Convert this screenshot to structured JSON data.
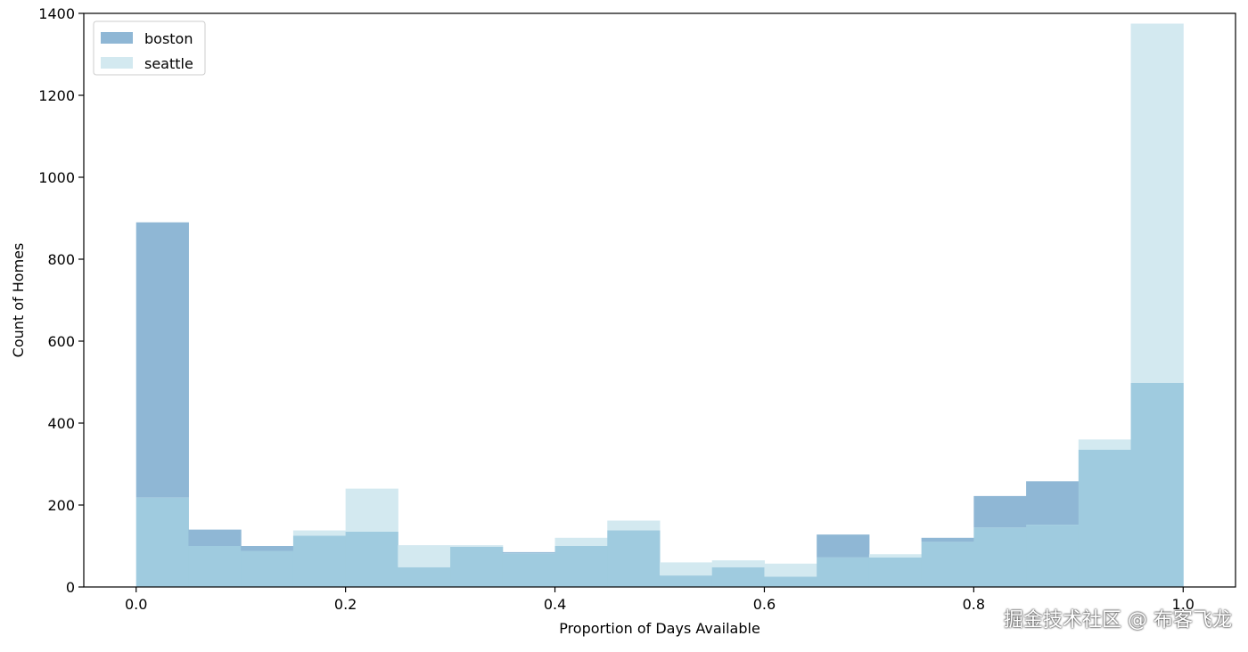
{
  "chart_data": {
    "type": "bar",
    "title": "",
    "xlabel": "Proportion of Days Available",
    "ylabel": "Count of Homes",
    "xlim": [
      -0.05,
      1.05
    ],
    "ylim": [
      0,
      1400
    ],
    "grid": false,
    "legend_position": "top-left",
    "xticks": [
      "0.0",
      "0.2",
      "0.4",
      "0.6",
      "0.8",
      "1.0"
    ],
    "yticks": [
      "0",
      "200",
      "400",
      "600",
      "800",
      "1000",
      "1200",
      "1400"
    ],
    "bin_edges": [
      0.0,
      0.05,
      0.1,
      0.15,
      0.2,
      0.25,
      0.3,
      0.35,
      0.4,
      0.45,
      0.5,
      0.55,
      0.6,
      0.65,
      0.7,
      0.75,
      0.8,
      0.85,
      0.9,
      0.95,
      1.0
    ],
    "series": [
      {
        "name": "boston",
        "color": "#8fb7d5",
        "values": [
          890,
          140,
          100,
          125,
          135,
          48,
          98,
          85,
          100,
          138,
          28,
          48,
          25,
          128,
          72,
          120,
          222,
          258,
          335,
          498
        ]
      },
      {
        "name": "seattle",
        "color": "#d3e9f0",
        "values": [
          218,
          100,
          88,
          138,
          240,
          102,
          102,
          82,
          120,
          162,
          60,
          65,
          57,
          72,
          80,
          110,
          145,
          152,
          360,
          1375
        ]
      }
    ],
    "overlap_color": "#9fcbdf"
  },
  "watermark": "掘金技术社区 @ 布客飞龙"
}
